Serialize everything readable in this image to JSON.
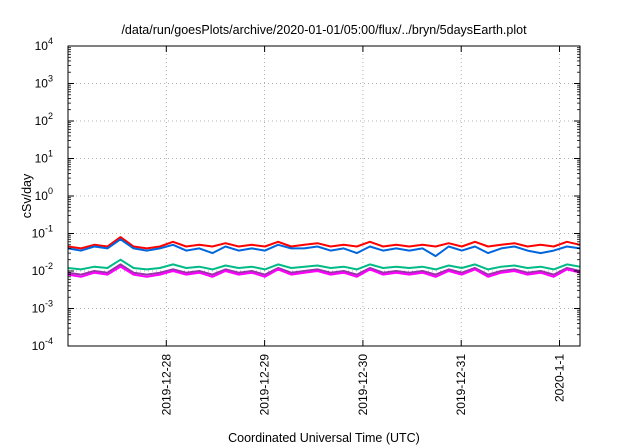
{
  "chart_data": {
    "type": "line",
    "title": "/data/run/goesPlots/archive/2020-01-01/05:00/flux/../bryn/5daysEarth.plot",
    "xlabel": "Coordinated Universal Time (UTC)",
    "ylabel": "cSv/day",
    "y_scale": "log",
    "ylim": [
      0.0001,
      10000
    ],
    "y_ticks": [
      {
        "base": "10",
        "exp": "4",
        "value": 10000
      },
      {
        "base": "10",
        "exp": "3",
        "value": 1000
      },
      {
        "base": "10",
        "exp": "2",
        "value": 100
      },
      {
        "base": "10",
        "exp": "1",
        "value": 10
      },
      {
        "base": "10",
        "exp": "0",
        "value": 1
      },
      {
        "base": "10",
        "exp": "-1",
        "value": 0.1
      },
      {
        "base": "10",
        "exp": "-2",
        "value": 0.01
      },
      {
        "base": "10",
        "exp": "-3",
        "value": 0.001
      },
      {
        "base": "10",
        "exp": "-4",
        "value": 0.0001
      }
    ],
    "x_ticks": [
      {
        "label": "2019-12-28",
        "day": 1
      },
      {
        "label": "2019-12-29",
        "day": 2
      },
      {
        "label": "2019-12-30",
        "day": 3
      },
      {
        "label": "2019-12-31",
        "day": 4
      },
      {
        "label": "2020-1-1",
        "day": 5
      }
    ],
    "xlim": [
      "2019-12-27 00:00",
      "2020-01-01 05:00"
    ],
    "grid": true,
    "series": [
      {
        "color": "#ff0000",
        "values": [
          0.045,
          0.04,
          0.05,
          0.045,
          0.08,
          0.045,
          0.04,
          0.045,
          0.06,
          0.045,
          0.05,
          0.045,
          0.055,
          0.045,
          0.05,
          0.045,
          0.06,
          0.045,
          0.05,
          0.055,
          0.045,
          0.05,
          0.045,
          0.06,
          0.045,
          0.05,
          0.045,
          0.05,
          0.045,
          0.055,
          0.045,
          0.06,
          0.045,
          0.05,
          0.055,
          0.045,
          0.05,
          0.045,
          0.06,
          0.05
        ]
      },
      {
        "color": "#0066dd",
        "values": [
          0.04,
          0.035,
          0.045,
          0.04,
          0.07,
          0.04,
          0.035,
          0.04,
          0.05,
          0.035,
          0.04,
          0.03,
          0.045,
          0.035,
          0.04,
          0.035,
          0.05,
          0.04,
          0.04,
          0.045,
          0.035,
          0.04,
          0.03,
          0.045,
          0.035,
          0.04,
          0.035,
          0.04,
          0.025,
          0.045,
          0.035,
          0.045,
          0.03,
          0.04,
          0.045,
          0.035,
          0.03,
          0.035,
          0.045,
          0.04
        ]
      },
      {
        "color": "#00bb88",
        "values": [
          0.012,
          0.011,
          0.013,
          0.012,
          0.02,
          0.012,
          0.011,
          0.012,
          0.015,
          0.012,
          0.013,
          0.011,
          0.014,
          0.012,
          0.013,
          0.011,
          0.015,
          0.012,
          0.013,
          0.014,
          0.012,
          0.013,
          0.011,
          0.015,
          0.012,
          0.013,
          0.012,
          0.013,
          0.011,
          0.014,
          0.012,
          0.015,
          0.011,
          0.013,
          0.014,
          0.012,
          0.013,
          0.011,
          0.015,
          0.013
        ]
      },
      {
        "color": "#9933aa",
        "values": [
          0.009,
          0.008,
          0.01,
          0.009,
          0.015,
          0.009,
          0.008,
          0.009,
          0.011,
          0.009,
          0.01,
          0.008,
          0.011,
          0.009,
          0.01,
          0.008,
          0.012,
          0.009,
          0.01,
          0.011,
          0.009,
          0.01,
          0.008,
          0.012,
          0.009,
          0.01,
          0.009,
          0.01,
          0.008,
          0.011,
          0.009,
          0.012,
          0.008,
          0.01,
          0.011,
          0.009,
          0.01,
          0.008,
          0.012,
          0.01
        ]
      },
      {
        "color": "#ff00ff",
        "values": [
          0.008,
          0.007,
          0.009,
          0.008,
          0.013,
          0.008,
          0.007,
          0.008,
          0.01,
          0.008,
          0.009,
          0.007,
          0.01,
          0.008,
          0.009,
          0.007,
          0.011,
          0.008,
          0.009,
          0.01,
          0.008,
          0.009,
          0.007,
          0.011,
          0.008,
          0.009,
          0.008,
          0.009,
          0.007,
          0.01,
          0.008,
          0.011,
          0.007,
          0.009,
          0.01,
          0.008,
          0.009,
          0.007,
          0.011,
          0.009
        ]
      }
    ]
  }
}
